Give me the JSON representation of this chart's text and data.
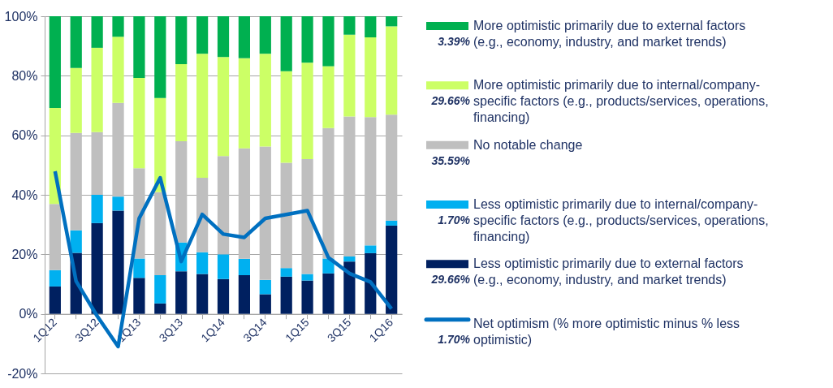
{
  "chart_data": {
    "type": "bar",
    "stacked": true,
    "categories": [
      "1Q12",
      null,
      "3Q12",
      null,
      "1Q13",
      null,
      "3Q13",
      null,
      "1Q14",
      null,
      "3Q14",
      null,
      "1Q15",
      null,
      "3Q15",
      null,
      "1Q16"
    ],
    "ylim": [
      -20,
      100
    ],
    "yticks": [
      {
        "value": -20,
        "label": "-20%"
      },
      {
        "value": 0,
        "label": "0%"
      },
      {
        "value": 20,
        "label": "20%"
      },
      {
        "value": 40,
        "label": "40%"
      },
      {
        "value": 60,
        "label": "60%"
      },
      {
        "value": 80,
        "label": "80%"
      },
      {
        "value": 100,
        "label": "100%"
      }
    ],
    "grid": "y",
    "legend": "right",
    "annotations": [
      "3.39%",
      "29.66%",
      "35.59%",
      "1.70%",
      "29.66%",
      "1.70%"
    ],
    "series": [
      {
        "name": "Less optimistic primarily due to external factors (e.g., economy, industry, and market trends)",
        "color": "#002060",
        "values": [
          9.2,
          20.5,
          30.5,
          34.7,
          12.1,
          3.5,
          14.3,
          13.4,
          11.7,
          13.0,
          6.6,
          12.5,
          11.2,
          13.6,
          17.6,
          20.4,
          29.66
        ]
      },
      {
        "name": "Less optimistic primarily due to internal/company-specific factors (e.g., products/services, operations, financing)",
        "color": "#00b0f0",
        "values": [
          5.5,
          7.6,
          9.5,
          4.7,
          6.5,
          9.5,
          9.7,
          7.3,
          8.3,
          5.5,
          4.8,
          2.9,
          2.2,
          5.0,
          1.7,
          2.6,
          1.7
        ]
      },
      {
        "name": "No notable change",
        "color": "#bfbfbf",
        "values": [
          22.2,
          32.7,
          21.1,
          31.5,
          30.3,
          27.9,
          34.0,
          25.0,
          33.0,
          37.1,
          44.8,
          35.4,
          38.6,
          43.8,
          47.0,
          43.1,
          35.59
        ]
      },
      {
        "name": "More optimistic primarily due to internal/company-specific factors (e.g., products/services, operations, financing)",
        "color": "#ccff66",
        "values": [
          32.3,
          21.8,
          28.3,
          22.2,
          30.4,
          31.6,
          25.9,
          41.7,
          33.3,
          30.3,
          31.2,
          30.7,
          32.4,
          20.8,
          27.5,
          26.8,
          29.66
        ]
      },
      {
        "name": "More optimistic primarily due to external factors (e.g., economy, industry, and market trends)",
        "color": "#00b050",
        "values": [
          30.8,
          17.4,
          10.6,
          6.9,
          20.7,
          27.5,
          16.1,
          12.6,
          13.7,
          14.1,
          12.6,
          18.5,
          15.6,
          16.8,
          6.2,
          7.1,
          3.39
        ]
      },
      {
        "name": "Net optimism (% more optimistic minus % less optimistic)",
        "color": "#0070c0",
        "type": "line",
        "values": [
          47.9,
          11.0,
          -0.7,
          -11.0,
          32.1,
          45.7,
          17.6,
          33.4,
          26.8,
          25.7,
          32.1,
          33.4,
          34.7,
          18.9,
          13.6,
          10.7,
          1.7
        ]
      }
    ]
  }
}
